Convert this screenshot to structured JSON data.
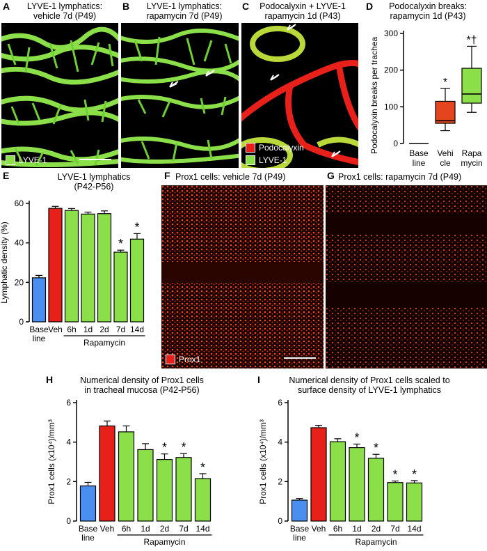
{
  "panels": {
    "A": {
      "letter": "A",
      "title1": "LYVE-1 lymphatics:",
      "title2": "vehicle 7d (P49)",
      "legend": "LYVE-1",
      "legend_color": "#8be04a"
    },
    "B": {
      "letter": "B",
      "title1": "LYVE-1 lymphatics:",
      "title2": "rapamycin 7d (P49)"
    },
    "C": {
      "letter": "C",
      "title1": "Podocalyxin + LYVE-1",
      "title2": "rapamycin 1d (P43)",
      "legend1": "Podocalyxin",
      "legend1_color": "#e8201a",
      "legend2": "LYVE-1",
      "legend2_color": "#8be04a"
    },
    "D": {
      "letter": "D",
      "title1": "Podocalyxin breaks:",
      "title2": "rapamycin 1d (P43)"
    },
    "E": {
      "letter": "E",
      "title1": "LYVE-1 lymphatics",
      "title2": "(P42-P56)"
    },
    "F": {
      "letter": "F",
      "title1": "Prox1 cells: vehicle 7d (P49)",
      "legend": "Prox1",
      "legend_color": "#e8201a"
    },
    "G": {
      "letter": "G",
      "title1": "Prox1 cells: rapamycin 7d (P49)"
    },
    "H": {
      "letter": "H",
      "title1": "Numerical density of Prox1 cells",
      "title2": "in tracheal mucosa (P42-P56)"
    },
    "I": {
      "letter": "I",
      "title1": "Numerical density of Prox1 cells scaled to",
      "title2": "surface density of LYVE-1 lymphatics"
    }
  },
  "colors": {
    "baseline": "#4a8ff0",
    "vehicle": "#e8201a",
    "rapamycin": "#8be04a",
    "box_vehicle": "#e4451f"
  },
  "chart_data": [
    {
      "id": "D",
      "type": "box",
      "ylabel": "Podocalyxin breaks per trachea",
      "ylim": [
        0,
        300
      ],
      "yticks": [
        0,
        100,
        200,
        300
      ],
      "categories": [
        {
          "line1": "Base",
          "line2": "line"
        },
        {
          "line1": "Vehi",
          "line2": "cle"
        },
        {
          "line1": "Rapa",
          "line2": "mycin"
        }
      ],
      "boxes": [
        {
          "min": 0,
          "q1": 0,
          "median": 0,
          "q3": 0,
          "max": 0
        },
        {
          "min": 35,
          "q1": 55,
          "median": 62,
          "q3": 115,
          "max": 150
        },
        {
          "min": 85,
          "q1": 110,
          "median": 135,
          "q3": 205,
          "max": 265
        }
      ],
      "annotations": [
        "",
        "*",
        "*†"
      ]
    },
    {
      "id": "E",
      "type": "bar",
      "ylabel": "Lymphatic density (%)",
      "ylim": [
        0,
        60
      ],
      "yticks": [
        0,
        20,
        40,
        60
      ],
      "categories": [
        {
          "line1": "Base",
          "line2": "line"
        },
        {
          "line1": "Veh",
          "line2": ""
        },
        {
          "line1": "6h",
          "line2": ""
        },
        {
          "line1": "1d",
          "line2": ""
        },
        {
          "line1": "2d",
          "line2": ""
        },
        {
          "line1": "7d",
          "line2": ""
        },
        {
          "line1": "14d",
          "line2": ""
        }
      ],
      "values": [
        22.3,
        57.5,
        56.4,
        54.6,
        54.8,
        35.3,
        41.9
      ],
      "errors": [
        1.2,
        1.0,
        1.0,
        1.0,
        1.4,
        1.0,
        2.8
      ],
      "color_keys": [
        "baseline",
        "vehicle",
        "rapamycin",
        "rapamycin",
        "rapamycin",
        "rapamycin",
        "rapamycin"
      ],
      "stars": [
        "",
        "",
        "",
        "",
        "",
        "*",
        "*"
      ],
      "group_label": "Rapamycin",
      "group_start": 2,
      "group_end": 6
    },
    {
      "id": "H",
      "type": "bar",
      "ylabel": "Prox1 cells (x10⁴)/mm³",
      "ylim": [
        0,
        6
      ],
      "yticks": [
        0,
        2,
        4,
        6
      ],
      "categories": [
        {
          "line1": "Base",
          "line2": "line"
        },
        {
          "line1": "Veh",
          "line2": ""
        },
        {
          "line1": "6h",
          "line2": ""
        },
        {
          "line1": "1d",
          "line2": ""
        },
        {
          "line1": "2d",
          "line2": ""
        },
        {
          "line1": "7d",
          "line2": ""
        },
        {
          "line1": "14d",
          "line2": ""
        }
      ],
      "values": [
        1.78,
        4.82,
        4.52,
        3.62,
        3.12,
        3.22,
        2.15
      ],
      "errors": [
        0.18,
        0.25,
        0.3,
        0.3,
        0.28,
        0.2,
        0.25
      ],
      "color_keys": [
        "baseline",
        "vehicle",
        "rapamycin",
        "rapamycin",
        "rapamycin",
        "rapamycin",
        "rapamycin"
      ],
      "stars": [
        "",
        "",
        "",
        "",
        "*",
        "*",
        "*"
      ],
      "group_label": "Rapamycin",
      "group_start": 2,
      "group_end": 6
    },
    {
      "id": "I",
      "type": "bar",
      "ylabel": "Prox1 cells (x10⁴)/mm³",
      "ylim": [
        0,
        6
      ],
      "yticks": [
        0,
        2,
        4,
        6
      ],
      "categories": [
        {
          "line1": "Base",
          "line2": "line"
        },
        {
          "line1": "Veh",
          "line2": ""
        },
        {
          "line1": "6h",
          "line2": ""
        },
        {
          "line1": "1d",
          "line2": ""
        },
        {
          "line1": "2d",
          "line2": ""
        },
        {
          "line1": "7d",
          "line2": ""
        },
        {
          "line1": "14d",
          "line2": ""
        }
      ],
      "values": [
        1.06,
        4.73,
        4.02,
        3.72,
        3.18,
        1.95,
        1.93
      ],
      "errors": [
        0.08,
        0.12,
        0.15,
        0.18,
        0.2,
        0.08,
        0.12
      ],
      "color_keys": [
        "baseline",
        "vehicle",
        "rapamycin",
        "rapamycin",
        "rapamycin",
        "rapamycin",
        "rapamycin"
      ],
      "stars": [
        "",
        "",
        "",
        "*",
        "*",
        "*",
        "*"
      ],
      "group_label": "Rapamycin",
      "group_start": 2,
      "group_end": 6
    }
  ]
}
